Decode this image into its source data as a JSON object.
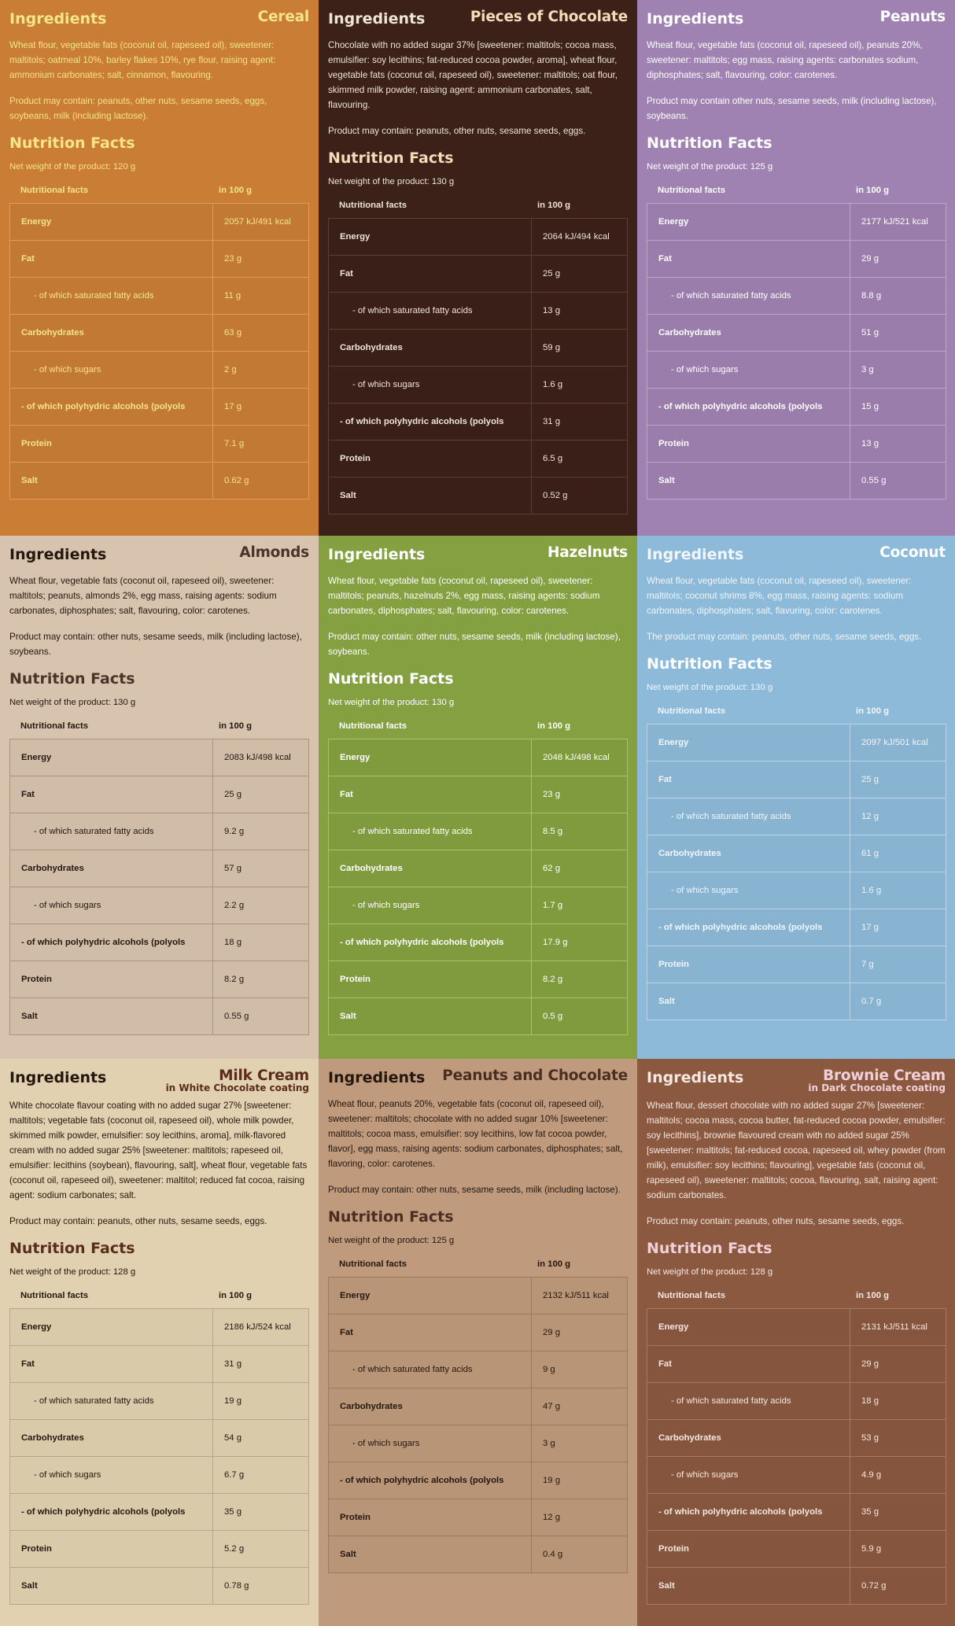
{
  "labels": {
    "ingredients": "Ingredients",
    "nutrition_facts": "Nutrition Facts",
    "col_name": "Nutritional facts",
    "col_value": "in 100 g",
    "rows": [
      "Energy",
      "Fat",
      "- of which saturated fatty acids",
      "Carbohydrates",
      "- of which sugars",
      "- of which polyhydric alcohols (polyols",
      "Protein",
      "Salt"
    ]
  },
  "panels": [
    {
      "name": "Cereal",
      "subtitle": "",
      "bg": "#c97d35",
      "text": "#f6e58a",
      "title": "#f6e58a",
      "border": "#e29b55",
      "ingredients": "Wheat flour, vegetable fats (coconut oil, rapeseed oil), sweetener: maltitols; oatmeal 10%, barley flakes 10%, rye flour, raising agent: ammonium carbonates; salt, cinnamon, flavouring.",
      "allergens": "Product may contain: peanuts, other nuts, sesame seeds, eggs, soybeans, milk (including lactose).",
      "net_weight": "Net weight of the product: 120 g",
      "values": [
        "2057 kJ/491 kcal",
        "23 g",
        "11 g",
        "63 g",
        "2 g",
        "17 g",
        "7.1 g",
        "0.62 g"
      ]
    },
    {
      "name": "Pieces of Chocolate",
      "subtitle": "",
      "bg": "#3b2118",
      "text": "#efe4d8",
      "title": "#f5dbb8",
      "border": "#5c3d2f",
      "ingredients": "Chocolate with no added sugar 37% [sweetener: maltitols; cocoa mass, emulsifier: soy lecithins; fat-reduced cocoa powder, aroma], wheat flour, vegetable fats (coconut oil, rapeseed oil), sweetener: maltitols; oat flour, skimmed milk powder, raising agent: ammonium carbonates, salt, flavouring.",
      "allergens": "Product may contain: peanuts, other nuts, sesame seeds, eggs.",
      "net_weight": "Net weight of the product: 130 g",
      "values": [
        "2064 kJ/494 kcal",
        "25 g",
        "13 g",
        "59 g",
        "1.6 g",
        "31 g",
        "6.5 g",
        "0.52 g"
      ]
    },
    {
      "name": "Peanuts",
      "subtitle": "",
      "bg": "#9f82b1",
      "text": "#ffffff",
      "title": "#ffffff",
      "border": "#bca6cb",
      "ingredients": "Wheat flour, vegetable fats (coconut oil, rapeseed oil), peanuts 20%, sweetener: maltitols; egg mass, raising agents: carbonates sodium, diphosphates; salt, flavouring, color: carotenes.",
      "allergens": "Product may contain other nuts, sesame seeds, milk (including lactose), soybeans.",
      "net_weight": "Net weight of the product: 125 g",
      "values": [
        "2177 kJ/521 kcal",
        "29 g",
        "8.8 g",
        "51 g",
        "3 g",
        "15 g",
        "13 g",
        "0.55 g"
      ]
    },
    {
      "name": "Almonds",
      "subtitle": "",
      "bg": "#d8c3ae",
      "text": "#24170f",
      "title": "#4a3428",
      "border": "#a89480",
      "ingredients": "Wheat flour, vegetable fats (coconut oil, rapeseed oil), sweetener: maltitols; peanuts, almonds 2%, egg mass, raising agents: sodium carbonates, diphosphates; salt, flavouring, color: carotenes.",
      "allergens": "Product may contain: other nuts, sesame seeds, milk (including lactose), soybeans.",
      "net_weight": "Net weight of the product: 130 g",
      "values": [
        "2083 kJ/498 kcal",
        "25 g",
        "9.2 g",
        "57 g",
        "2.2 g",
        "18 g",
        "8.2 g",
        "0.55 g"
      ]
    },
    {
      "name": "Hazelnuts",
      "subtitle": "",
      "bg": "#85a040",
      "text": "#ffffff",
      "title": "#ffffff",
      "border": "#a8c070",
      "ingredients": "Wheat flour, vegetable fats (coconut oil, rapeseed oil), sweetener: maltitols; peanuts, hazelnuts 2%, egg mass, raising agents: sodium carbonates, diphosphates; salt, flavouring, color: carotenes.",
      "allergens": "Product may contain: other nuts, sesame seeds, milk (including lactose), soybeans.",
      "net_weight": "Net weight of the product: 130 g",
      "values": [
        "2048 kJ/498 kcal",
        "23 g",
        "8.5 g",
        "62 g",
        "1.7 g",
        "17.9 g",
        "8.2 g",
        "0.5 g"
      ]
    },
    {
      "name": "Coconut",
      "subtitle": "",
      "bg": "#8dbad9",
      "text": "#f0f6fb",
      "title": "#ffffff",
      "border": "#b8d5eb",
      "ingredients": "Wheat flour, vegetable fats (coconut oil, rapeseed oil), sweetener: maltitols; coconut shrims 8%, egg mass, raising agents: sodium carbonates, diphosphates; salt, flavuring, color: carotenes.",
      "allergens": "The product may contain: peanuts, other nuts, sesame seeds, eggs.",
      "net_weight": "Net weight of the product: 130 g",
      "values": [
        "2097 kJ/501 kcal",
        "25 g",
        "12 g",
        "61 g",
        "1.6 g",
        "17 g",
        "7 g",
        "0.7 g"
      ]
    },
    {
      "name": "Milk Cream",
      "subtitle": "in White Chocolate coating",
      "bg": "#e1d1b0",
      "text": "#24170f",
      "title": "#5a2c1c",
      "border": "#b8a68a",
      "ingredients": "White chocolate flavour coating with no added sugar 27% [sweetener: maltitols; vegetable fats (coconut oil, rapeseed oil), whole milk powder, skimmed milk powder, emulsifier: soy lecithins, aroma], milk-flavored cream with no added sugar 25% [sweetener: maltitols; rapeseed oil, emulsifier: lecithins (soybean), flavouring, salt], wheat flour, vegetable fats (coconut oil, rapeseed oil), sweetener: maltitol; reduced fat cocoa, raising agent: sodium carbonates; salt.",
      "allergens": "Product may contain: peanuts, other nuts, sesame seeds, eggs.",
      "net_weight": "Net weight of the product: 128 g",
      "values": [
        "2186 kJ/524 kcal",
        "31 g",
        "19 g",
        "54 g",
        "6.7 g",
        "35 g",
        "5.2 g",
        "0.78 g"
      ]
    },
    {
      "name": "Peanuts and Chocolate",
      "subtitle": "",
      "bg": "#bf9a7c",
      "text": "#24170f",
      "title": "#4a2e22",
      "border": "#9c7a5e",
      "ingredients": "Wheat flour, peanuts 20%, vegetable fats (coconut oil, rapeseed oil), sweetener: maltitols; chocolate with no added sugar 10% [sweetener: maltitols; cocoa mass, emulsifier: soy lecithins, low fat cocoa powder, flavor], egg mass, raising agents: sodium carbonates, diphosphates; salt, flavoring, color: carotenes.",
      "allergens": "Product may contain: other nuts, sesame seeds, milk (including lactose).",
      "net_weight": "Net weight of the product: 125 g",
      "values": [
        "2132 kJ/511 kcal",
        "29 g",
        "9 g",
        "47 g",
        "3 g",
        "19 g",
        "12 g",
        "0.4 g"
      ]
    },
    {
      "name": "Brownie Cream",
      "subtitle": "in Dark Chocolate coating",
      "bg": "#8b5840",
      "text": "#f5e8e0",
      "title": "#f2d0da",
      "border": "#a87862",
      "ingredients": "Wheat flour, dessert chocolate with no added sugar 27% [sweetener: maltitols; cocoa mass, cocoa butter, fat-reduced cocoa powder, emulsifier: soy lecithins], brownie flavoured cream with no added sugar 25% [sweetener: maltitols; fat-reduced cocoa, rapeseed oil, whey powder (from milk), emulsifier: soy lecithins; flavouring], vegetable fats (coconut oil, rapeseed oil), sweetener: maltitols; cocoa, flavouring, salt, raising agent: sodium carbonates.",
      "allergens": "Product may contain: peanuts, other nuts, sesame seeds, eggs.",
      "net_weight": "Net weight of the product: 128 g",
      "values": [
        "2131 kJ/511 kcal",
        "29 g",
        "18 g",
        "53 g",
        "4.9 g",
        "35 g",
        "5.9 g",
        "0.72 g"
      ]
    }
  ]
}
